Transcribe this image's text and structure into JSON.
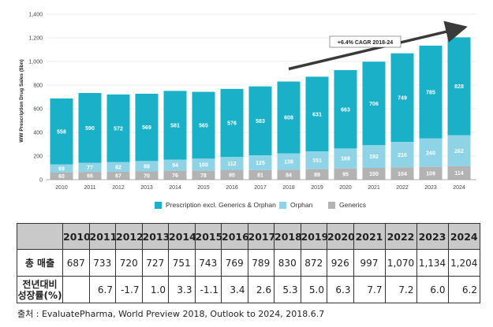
{
  "colors": {
    "prescription": "#19b0c8",
    "orphan": "#8fd3e6",
    "generics": "#b3b3b3",
    "arrow": "#3a3a3a",
    "grid": "#dddddd"
  },
  "chart_data": {
    "type": "bar",
    "stacked": true,
    "ylabel": "WW Prescription Drug Sales ($bn)",
    "ylim": [
      0,
      1400
    ],
    "yticks": [
      "0",
      "200",
      "400",
      "600",
      "800",
      "1,000",
      "1,200",
      "1,400"
    ],
    "ytick_values": [
      0,
      200,
      400,
      600,
      800,
      1000,
      1200,
      1400
    ],
    "categories": [
      "2010",
      "2011",
      "2012",
      "2013",
      "2014",
      "2015",
      "2016",
      "2017",
      "2018",
      "2019",
      "2020",
      "2021",
      "2022",
      "2023",
      "2024"
    ],
    "series": [
      {
        "name": "Generics",
        "key": "generics",
        "values": [
          60,
          66,
          67,
          70,
          76,
          78,
          80,
          81,
          84,
          89,
          95,
          100,
          104,
          109,
          114
        ]
      },
      {
        "name": "Orphan",
        "key": "orphan",
        "values": [
          69,
          77,
          82,
          88,
          94,
          100,
          112,
          125,
          138,
          151,
          169,
          192,
          216,
          240,
          262
        ]
      },
      {
        "name": "Prescription excl. Generics & Orphan",
        "key": "prescription",
        "values": [
          558,
          590,
          572,
          569,
          581,
          565,
          576,
          583,
          608,
          631,
          663,
          706,
          749,
          785,
          828
        ]
      }
    ],
    "annotation": {
      "text": "+6.4% CAGR 2018-24",
      "from_category": "2018",
      "to_category": "2024"
    },
    "legend": [
      "Prescription excl. Generics & Orphan",
      "Orphan",
      "Generics"
    ]
  },
  "table": {
    "years": [
      "2010",
      "2011",
      "2012",
      "2013",
      "2014",
      "2015",
      "2016",
      "2017",
      "2018",
      "2019",
      "2020",
      "2021",
      "2022",
      "2023",
      "2024"
    ],
    "rows": [
      {
        "label": "총 매출",
        "values": [
          "687",
          "733",
          "720",
          "727",
          "751",
          "743",
          "769",
          "789",
          "830",
          "872",
          "926",
          "997",
          "1,070",
          "1,134",
          "1,204"
        ]
      },
      {
        "label_lines": [
          "전년대비",
          "성장률(%)"
        ],
        "values": [
          "",
          "6.7",
          "-1.7",
          "1.0",
          "3.3",
          "-1.1",
          "3.4",
          "2.6",
          "5.3",
          "5.0",
          "6.3",
          "7.7",
          "7.2",
          "6.0",
          "6.2"
        ]
      }
    ]
  },
  "source": "출처 : EvaluatePharma, World Preview 2018, Outlook to 2024, 2018.6.7"
}
